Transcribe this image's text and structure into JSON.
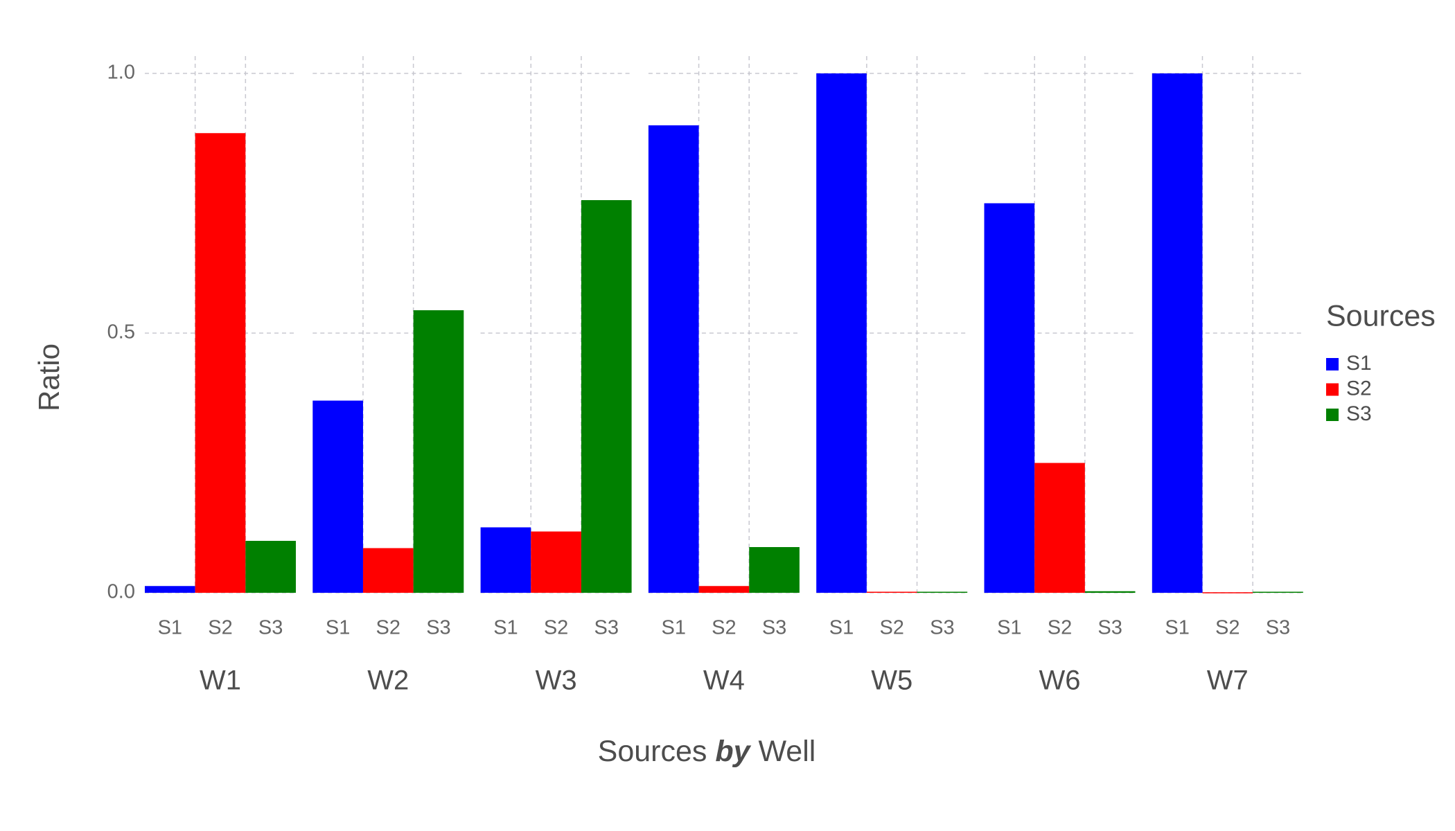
{
  "chart_data": {
    "type": "bar",
    "categories": [
      "W1",
      "W2",
      "W3",
      "W4",
      "W5",
      "W6",
      "W7"
    ],
    "series": [
      {
        "name": "S1",
        "color": "#0000ff",
        "values": [
          0.013,
          0.37,
          0.126,
          0.9,
          1.0,
          0.75,
          1.0
        ]
      },
      {
        "name": "S2",
        "color": "#ff0000",
        "values": [
          0.885,
          0.086,
          0.118,
          0.013,
          0.002,
          0.25,
          0.001
        ]
      },
      {
        "name": "S3",
        "color": "#008000",
        "values": [
          0.1,
          0.544,
          0.756,
          0.088,
          0.002,
          0.003,
          0.002
        ]
      }
    ],
    "ylim": [
      0,
      1
    ],
    "yticks": [
      {
        "value": 0,
        "label": "0.0"
      },
      {
        "value": 0.5,
        "label": "0.5"
      },
      {
        "value": 1,
        "label": "1.0"
      }
    ],
    "y_label": "Ratio",
    "x_label": [
      "Sources",
      "by",
      "Well"
    ],
    "legend_title": "Sources",
    "legend_position": "right",
    "grid": true
  }
}
